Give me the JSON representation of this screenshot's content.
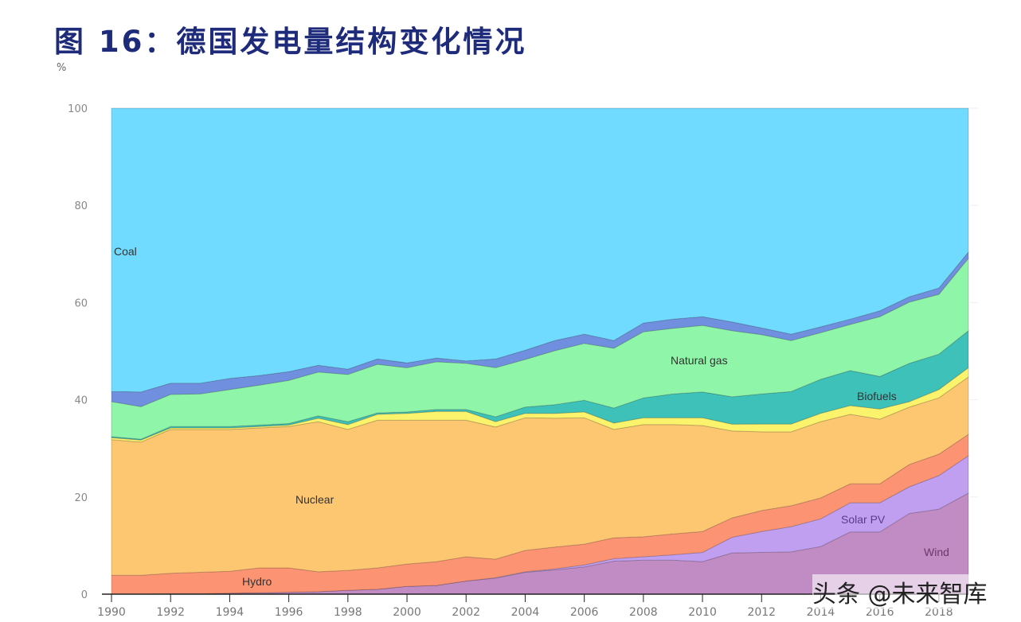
{
  "title": "图 16：德国发电量结构变化情况",
  "watermark": "头条 @未来智库",
  "chart_data": {
    "type": "area",
    "stacked": true,
    "ylabel": "%",
    "ylim": [
      0,
      100
    ],
    "yticks": [
      "0",
      "20",
      "40",
      "60",
      "80",
      "100"
    ],
    "xticks": [
      "1990",
      "1992",
      "1994",
      "1996",
      "1998",
      "2000",
      "2002",
      "2004",
      "2006",
      "2008",
      "2010",
      "2012",
      "2014",
      "2016",
      "2018"
    ],
    "x": [
      1990,
      1991,
      1992,
      1993,
      1994,
      1995,
      1996,
      1997,
      1998,
      1999,
      2000,
      2001,
      2002,
      2003,
      2004,
      2005,
      2006,
      2007,
      2008,
      2009,
      2010,
      2011,
      2012,
      2013,
      2014,
      2015,
      2016,
      2017,
      2018,
      2019
    ],
    "grid": false,
    "series": [
      {
        "name": "Wind",
        "color": "#c18bc3",
        "values": [
          0,
          0,
          0.1,
          0.1,
          0.2,
          0.3,
          0.4,
          0.5,
          0.8,
          1.0,
          1.6,
          1.8,
          2.7,
          3.3,
          4.5,
          5.0,
          5.6,
          6.8,
          7.0,
          7.0,
          6.7,
          8.5,
          8.6,
          8.7,
          9.8,
          12.8,
          12.8,
          16.6,
          17.5,
          20.8
        ]
      },
      {
        "name": "Solar PV",
        "color": "#c09ff0",
        "values": [
          0,
          0,
          0,
          0,
          0,
          0,
          0,
          0,
          0,
          0,
          0,
          0,
          0,
          0.1,
          0.1,
          0.2,
          0.4,
          0.5,
          0.7,
          1.1,
          1.9,
          3.2,
          4.3,
          5.2,
          5.7,
          6.0,
          6.0,
          5.5,
          6.9,
          7.7
        ]
      },
      {
        "name": "Hydro",
        "color": "#fc9373",
        "values": [
          3.9,
          3.9,
          4.2,
          4.4,
          4.5,
          5.1,
          5.0,
          4.1,
          4.1,
          4.4,
          4.6,
          4.9,
          5.0,
          3.8,
          4.4,
          4.5,
          4.3,
          4.3,
          4.1,
          4.3,
          4.3,
          4.0,
          4.3,
          4.3,
          4.3,
          3.9,
          3.9,
          4.6,
          4.4,
          4.4
        ]
      },
      {
        "name": "Nuclear",
        "color": "#fdc671",
        "values": [
          27.9,
          27.4,
          29.6,
          29.4,
          29.2,
          28.8,
          29.1,
          30.9,
          29.0,
          30.4,
          29.6,
          29.1,
          28.1,
          27.2,
          27.3,
          26.5,
          26.0,
          22.3,
          23.1,
          22.5,
          21.8,
          17.9,
          16.2,
          15.2,
          15.7,
          14.3,
          13.3,
          11.8,
          11.6,
          11.8
        ]
      },
      {
        "name": "",
        "color": "#fbf36c",
        "values": [
          0.4,
          0.4,
          0.3,
          0.3,
          0.3,
          0.3,
          0.3,
          0.7,
          1.0,
          1.2,
          1.4,
          1.8,
          1.8,
          1.1,
          0.9,
          1.0,
          1.2,
          1.3,
          1.4,
          1.4,
          1.6,
          1.4,
          1.6,
          1.6,
          1.7,
          1.8,
          2.1,
          1.1,
          1.7,
          1.9
        ]
      },
      {
        "name": "Biofuels",
        "color": "#3dc1b8",
        "values": [
          0.2,
          0.2,
          0.3,
          0.3,
          0.3,
          0.3,
          0.3,
          0.5,
          0.6,
          0.3,
          0.3,
          0.4,
          0.4,
          1.0,
          1.3,
          1.8,
          2.4,
          3.1,
          4.1,
          4.9,
          5.3,
          5.6,
          6.2,
          6.7,
          7.0,
          7.2,
          6.7,
          7.9,
          7.3,
          7.6
        ]
      },
      {
        "name": "Natural gas",
        "color": "#8ff5a8",
        "values": [
          7.2,
          6.7,
          6.6,
          6.7,
          7.6,
          8.2,
          8.9,
          9.0,
          9.7,
          10.0,
          9.1,
          9.8,
          9.5,
          10.1,
          9.8,
          11.1,
          11.7,
          12.3,
          13.6,
          13.5,
          13.7,
          13.6,
          12.2,
          10.5,
          9.6,
          9.5,
          12.3,
          12.6,
          12.3,
          14.9
        ]
      },
      {
        "name": "",
        "color": "#7090df",
        "values": [
          2.1,
          3.0,
          2.3,
          2.2,
          2.3,
          2.0,
          1.8,
          1.4,
          1.1,
          1.1,
          1.0,
          0.8,
          0.5,
          1.8,
          1.9,
          2.1,
          1.9,
          1.6,
          1.8,
          1.9,
          1.8,
          1.8,
          1.4,
          1.3,
          1.2,
          1.1,
          1.2,
          1.1,
          1.3,
          1.3
        ]
      },
      {
        "name": "Coal",
        "color": "#70dbfe",
        "values": [
          58.3,
          58.4,
          56.6,
          56.6,
          55.6,
          55.0,
          54.2,
          52.9,
          53.7,
          51.6,
          52.4,
          51.4,
          52.0,
          51.6,
          49.8,
          47.8,
          46.5,
          47.8,
          44.2,
          43.4,
          42.9,
          44.0,
          45.2,
          46.5,
          45.0,
          43.4,
          41.7,
          38.8,
          37.0,
          29.6
        ]
      }
    ]
  }
}
